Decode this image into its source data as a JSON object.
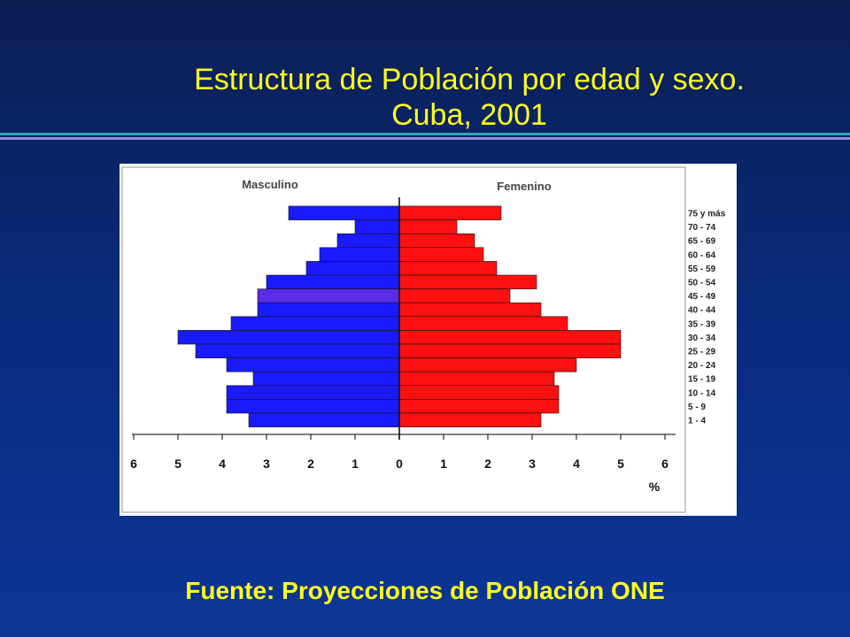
{
  "slide": {
    "title_line1": "Estructura de Población por edad y sexo.",
    "title_line2": "Cuba, 2001",
    "source": "Fuente: Proyecciones de Población ONE"
  },
  "colors": {
    "background": "#0a2a7a",
    "title": "#ffff1e",
    "male": "#1a1aff",
    "male_highlight": "#5a2ce8",
    "female": "#ff1010"
  },
  "chart_data": {
    "type": "bar",
    "orientation": "horizontal-population-pyramid",
    "left_label": "Masculino",
    "right_label": "Femenino",
    "xlabel": "%",
    "xlim": [
      -6,
      6
    ],
    "x_ticks": [
      "6",
      "5",
      "4",
      "3",
      "2",
      "1",
      "0",
      "1",
      "2",
      "3",
      "4",
      "5",
      "6"
    ],
    "categories": [
      "75 y más",
      "70 - 74",
      "65 - 69",
      "60 - 64",
      "55 - 59",
      "50 - 54",
      "45 - 49",
      "40 - 44",
      "35 - 39",
      "30 - 34",
      "25 - 29",
      "20 - 24",
      "15 - 19",
      "10 - 14",
      "5 - 9",
      "1 - 4"
    ],
    "series": [
      {
        "name": "Masculino",
        "values": [
          2.5,
          1.0,
          1.4,
          1.8,
          2.1,
          3.0,
          3.2,
          3.2,
          3.8,
          5.0,
          4.6,
          3.9,
          3.3,
          3.9,
          3.9,
          3.4
        ]
      },
      {
        "name": "Femenino",
        "values": [
          2.3,
          1.3,
          1.7,
          1.9,
          2.2,
          3.1,
          2.5,
          3.2,
          3.8,
          5.0,
          5.0,
          4.0,
          3.5,
          3.6,
          3.6,
          3.2
        ]
      }
    ],
    "grid": false,
    "legend": "none"
  }
}
